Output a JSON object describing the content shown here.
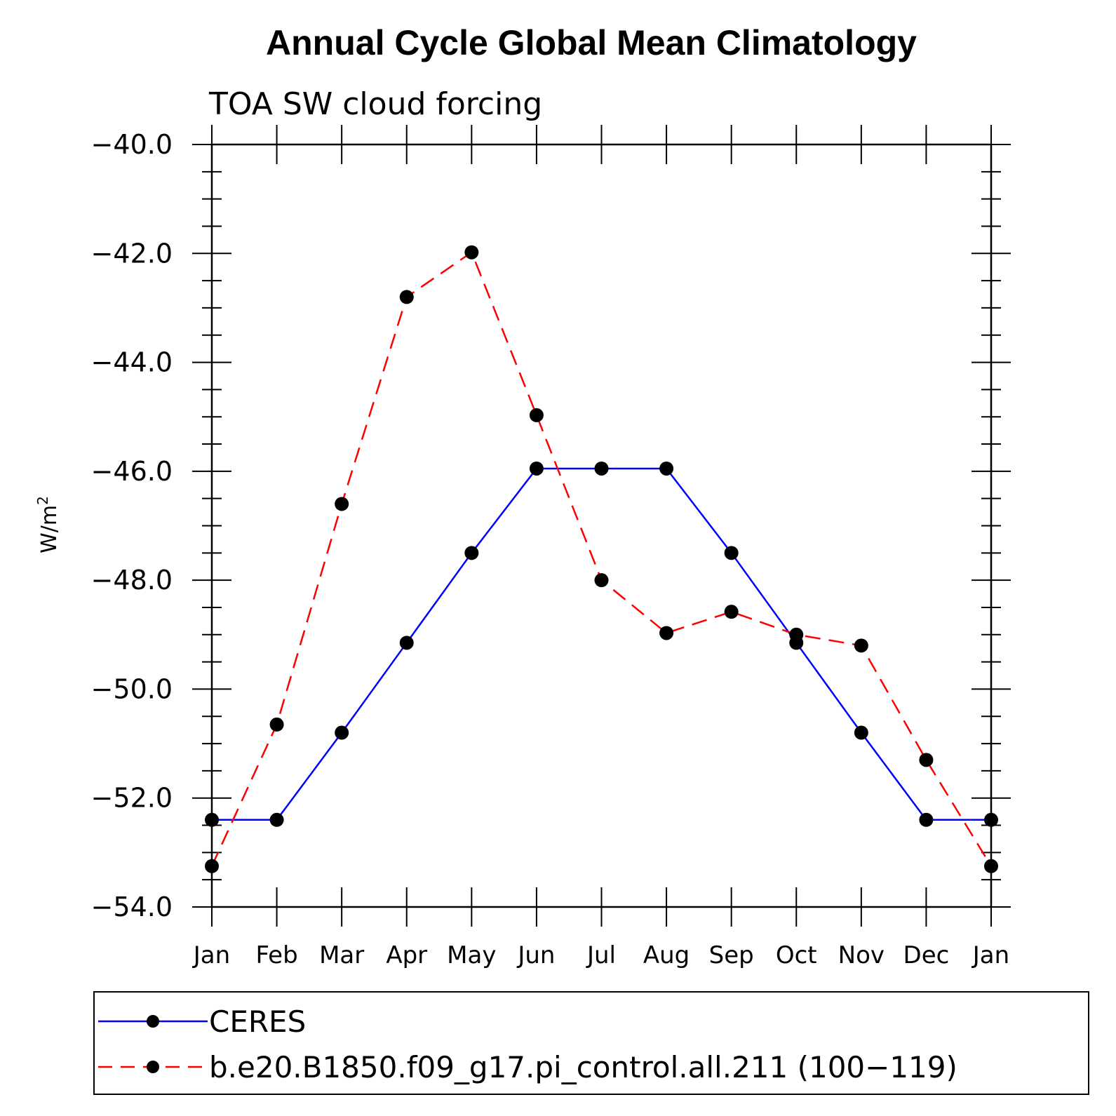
{
  "chart_data": {
    "type": "line",
    "title": "Annual Cycle Global Mean Climatology",
    "subtitle": "TOA SW cloud forcing",
    "ylabel": "W/m",
    "ylabel_superscript": "2",
    "ylim": [
      -54.0,
      -40.0
    ],
    "yticks": [
      "-40.0",
      "-42.0",
      "-44.0",
      "-46.0",
      "-48.0",
      "-50.0",
      "-52.0",
      "-54.0"
    ],
    "categories": [
      "Jan",
      "Feb",
      "Mar",
      "Apr",
      "May",
      "Jun",
      "Jul",
      "Aug",
      "Sep",
      "Oct",
      "Nov",
      "Dec",
      "Jan"
    ],
    "grid": false,
    "legend_position": "bottom",
    "series": [
      {
        "name": "CERES",
        "color": "#0000ff",
        "dash": "solid",
        "values": [
          -52.4,
          -52.4,
          -50.8,
          -49.15,
          -47.5,
          -45.95,
          -45.95,
          -45.95,
          -47.5,
          -49.15,
          -50.8,
          -52.4,
          -52.4
        ]
      },
      {
        "name": "b.e20.B1850.f09_g17.pi_control.all.211 (100−119)",
        "color": "#ff0000",
        "dash": "dashed",
        "values": [
          -53.25,
          -50.65,
          -46.6,
          -42.8,
          -41.98,
          -44.97,
          -48.0,
          -48.97,
          -48.58,
          -49.0,
          -49.2,
          -51.3,
          -53.25
        ]
      }
    ]
  }
}
